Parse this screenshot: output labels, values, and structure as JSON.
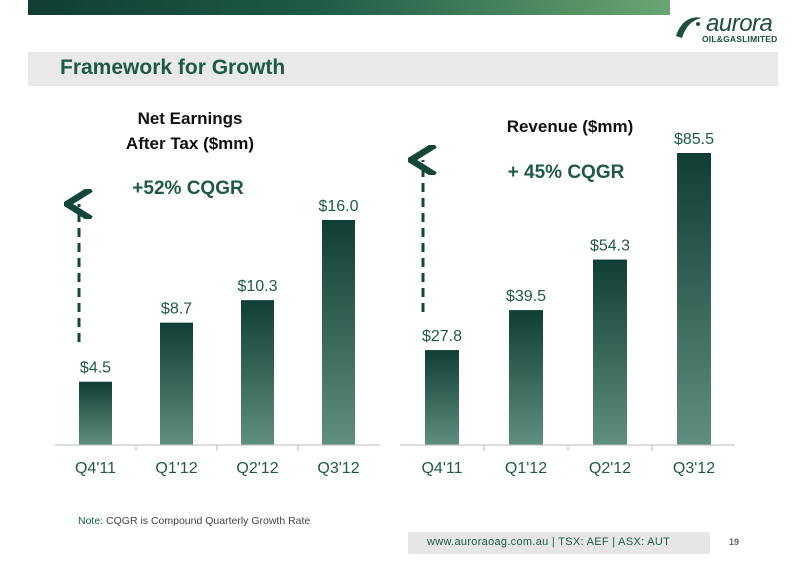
{
  "header": {
    "title": "Framework for Growth",
    "logo_name": "aurora",
    "logo_sub": "OIL&GASLIMITED",
    "accent": "#1e5a48"
  },
  "chart_data": [
    {
      "type": "bar",
      "title_lines": [
        "Net Earnings",
        "After Tax ($mm)"
      ],
      "annotation": "+52% CQGR",
      "categories": [
        "Q4'11",
        "Q1'12",
        "Q2'12",
        "Q3'12"
      ],
      "values": [
        4.5,
        8.7,
        10.3,
        16.0
      ],
      "labels": [
        "$4.5",
        "$8.7",
        "$10.3",
        "$16.0"
      ],
      "ylim": [
        0,
        16.0
      ]
    },
    {
      "type": "bar",
      "title_lines": [
        "Revenue ($mm)"
      ],
      "annotation": "+ 45% CQGR",
      "categories": [
        "Q4'11",
        "Q1'12",
        "Q2'12",
        "Q3'12"
      ],
      "values": [
        27.8,
        39.5,
        54.3,
        85.5
      ],
      "labels": [
        "$27.8",
        "$39.5",
        "$54.3",
        "$85.5"
      ],
      "ylim": [
        0,
        85.5
      ]
    }
  ],
  "note": {
    "prefix": "Note:",
    "text": "CQGR is Compound Quarterly Growth Rate"
  },
  "footer": {
    "text": "www.auroraoag.com.au   |   TSX: AEF   |   ASX: AUT",
    "page": "19"
  }
}
